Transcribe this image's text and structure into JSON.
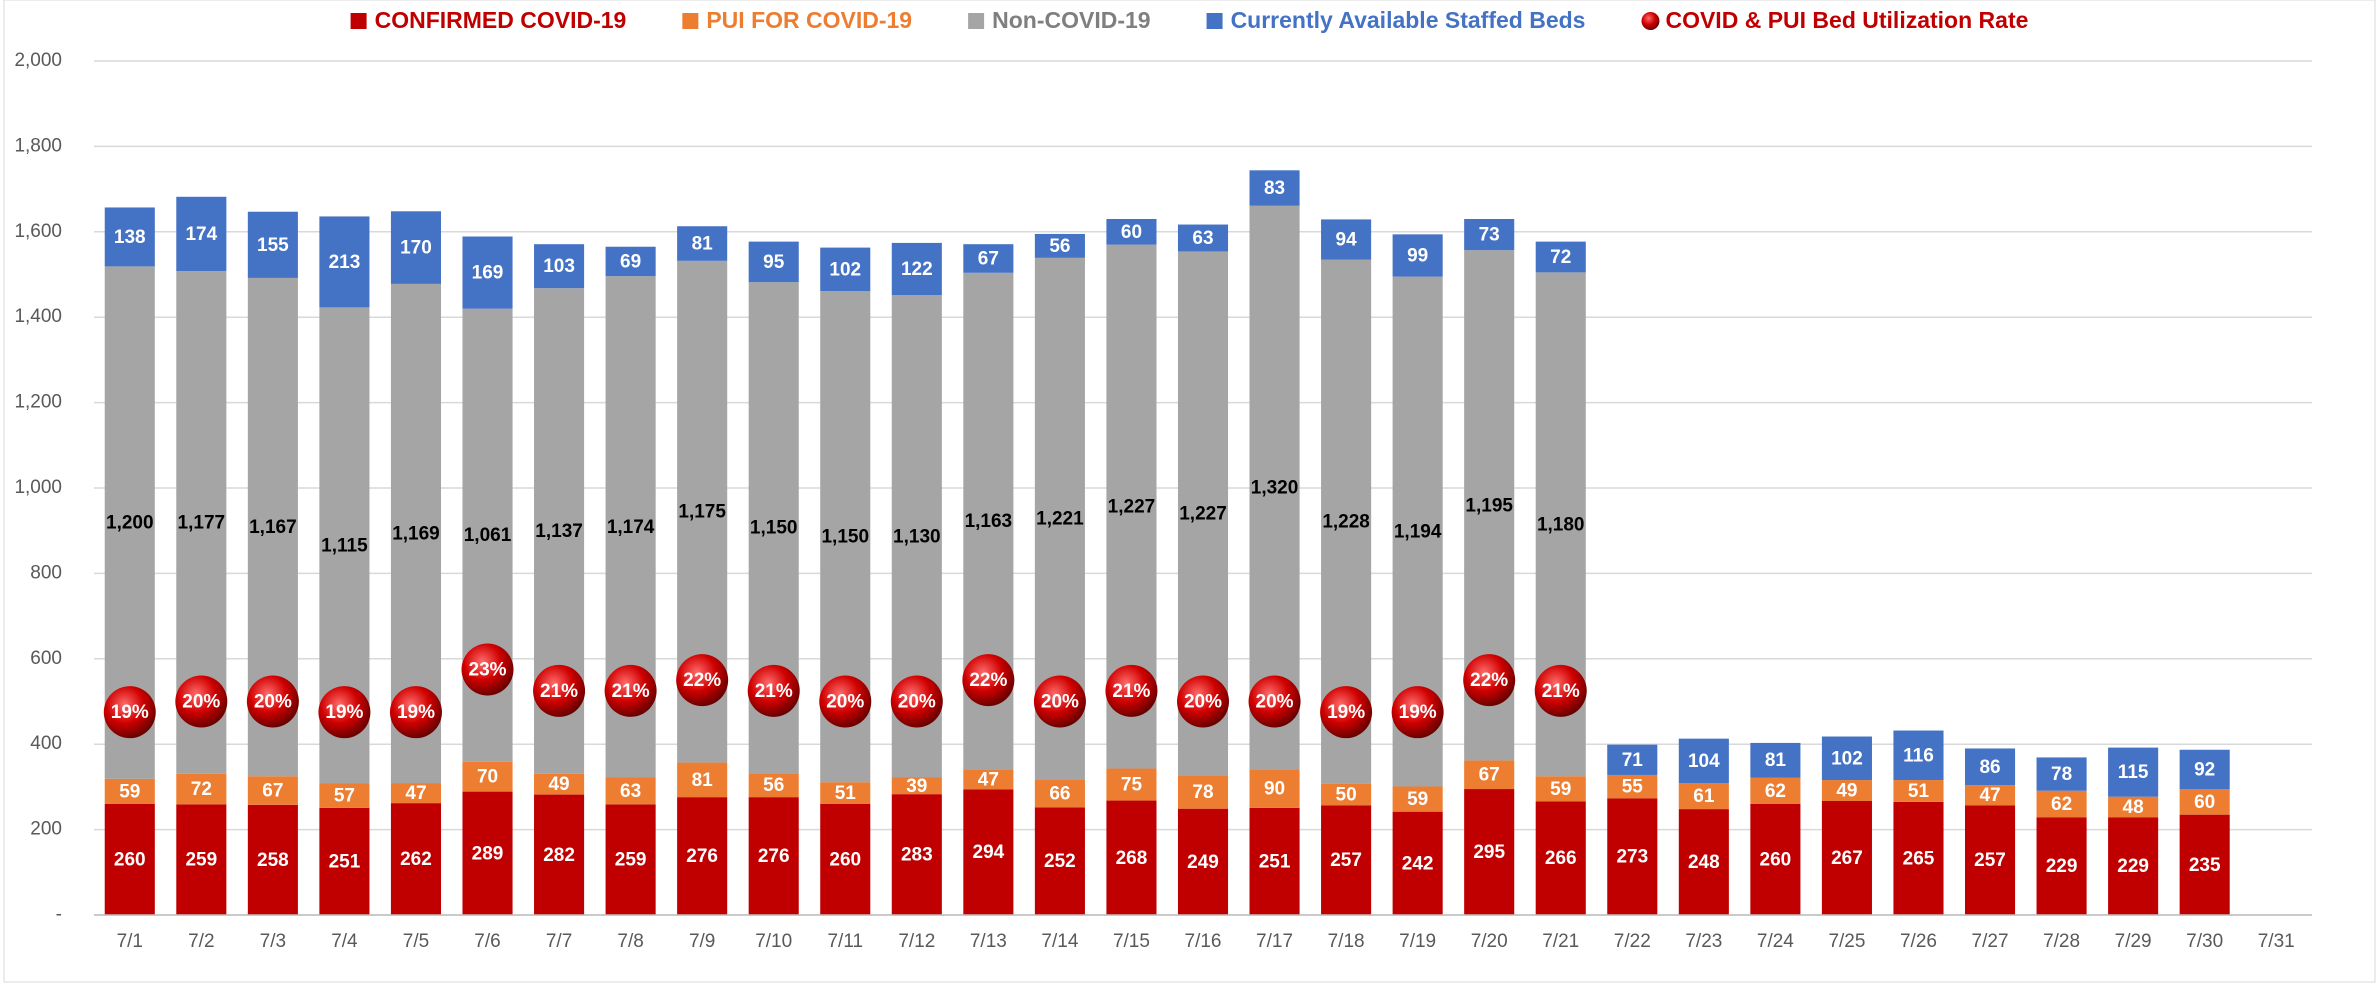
{
  "chart_data": {
    "type": "bar",
    "stacked": true,
    "categories": [
      "7/1",
      "7/2",
      "7/3",
      "7/4",
      "7/5",
      "7/6",
      "7/7",
      "7/8",
      "7/9",
      "7/10",
      "7/11",
      "7/12",
      "7/13",
      "7/14",
      "7/15",
      "7/16",
      "7/17",
      "7/18",
      "7/19",
      "7/20",
      "7/21",
      "7/22",
      "7/23",
      "7/24",
      "7/25",
      "7/26",
      "7/27",
      "7/28",
      "7/29",
      "7/30",
      "7/31"
    ],
    "ylim": [
      0,
      2000
    ],
    "yticks": [
      {
        "value": 0,
        "label": "-"
      },
      200,
      400,
      600,
      800,
      {
        "value": 1000,
        "label": "1,000"
      },
      {
        "value": 1200,
        "label": "1,200"
      },
      {
        "value": 1400,
        "label": "1,400"
      },
      {
        "value": 1600,
        "label": "1,600"
      },
      {
        "value": 1800,
        "label": "1,800"
      },
      {
        "value": 2000,
        "label": "2,000"
      }
    ],
    "y2lim": [
      0,
      80
    ],
    "grid": true,
    "legend": "top",
    "series": [
      {
        "name": "CONFIRMED COVID-19",
        "color": "#c00000",
        "values": [
          260,
          259,
          258,
          251,
          262,
          289,
          282,
          259,
          276,
          276,
          260,
          283,
          294,
          252,
          268,
          249,
          251,
          257,
          242,
          295,
          266,
          273,
          248,
          260,
          267,
          265,
          257,
          229,
          229,
          235,
          null
        ]
      },
      {
        "name": "PUI FOR COVID-19",
        "color": "#ed7d31",
        "values": [
          59,
          72,
          67,
          57,
          47,
          70,
          49,
          63,
          81,
          56,
          51,
          39,
          47,
          66,
          75,
          78,
          90,
          50,
          59,
          67,
          59,
          55,
          61,
          62,
          49,
          51,
          47,
          62,
          48,
          60,
          null
        ]
      },
      {
        "name": "Non-COVID-19",
        "color": "#a5a5a5",
        "values": [
          1200,
          1177,
          1167,
          1115,
          1169,
          1061,
          1137,
          1174,
          1175,
          1150,
          1150,
          1130,
          1163,
          1221,
          1227,
          1227,
          1320,
          1228,
          1194,
          1195,
          1180,
          null,
          null,
          null,
          null,
          null,
          null,
          null,
          null,
          null,
          null
        ],
        "value_labels": [
          "1,200",
          "1,177",
          "1,167",
          "1,115",
          "1,169",
          "1,061",
          "1,137",
          "1,174",
          "1,175",
          "1,150",
          "1,150",
          "1,130",
          "1,163",
          "1,221",
          "1,227",
          "1,227",
          "1,320",
          "1,228",
          "1,194",
          "1,195",
          "1,180",
          null,
          null,
          null,
          null,
          null,
          null,
          null,
          null,
          null,
          null
        ]
      },
      {
        "name": "Currently Available Staffed Beds",
        "color": "#4472c4",
        "values": [
          138,
          174,
          155,
          213,
          170,
          169,
          103,
          69,
          81,
          95,
          102,
          122,
          67,
          56,
          60,
          63,
          83,
          94,
          99,
          73,
          72,
          71,
          104,
          81,
          102,
          116,
          86,
          78,
          115,
          92,
          null
        ]
      },
      {
        "name": "COVID & PUI Bed Utilization Rate",
        "color": "#c00000",
        "type": "scatter",
        "axis": "y2",
        "values": [
          19,
          20,
          20,
          19,
          19,
          23,
          21,
          21,
          22,
          21,
          20,
          20,
          22,
          20,
          21,
          20,
          20,
          19,
          19,
          22,
          21,
          null,
          null,
          null,
          null,
          null,
          null,
          null,
          null,
          null,
          null
        ],
        "value_labels": [
          "19%",
          "20%",
          "20%",
          "19%",
          "19%",
          "23%",
          "21%",
          "21%",
          "22%",
          "21%",
          "20%",
          "20%",
          "22%",
          "20%",
          "21%",
          "20%",
          "20%",
          "19%",
          "19%",
          "22%",
          "21%",
          null,
          null,
          null,
          null,
          null,
          null,
          null,
          null,
          null,
          null
        ]
      }
    ]
  }
}
